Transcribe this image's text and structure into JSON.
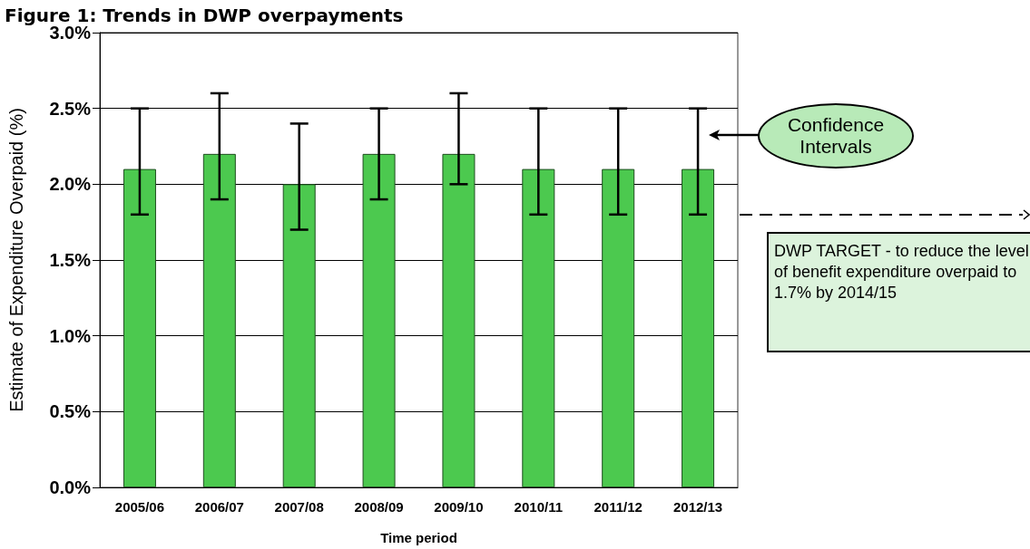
{
  "chart_data": {
    "type": "bar",
    "title": "Figure 1: Trends in DWP overpayments",
    "xlabel": "Time period",
    "ylabel": "Estimate of Expenditure Overpaid (%)",
    "categories": [
      "2005/06",
      "2006/07",
      "2007/08",
      "2008/09",
      "2009/10",
      "2010/11",
      "2011/12",
      "2012/13"
    ],
    "values": [
      2.1,
      2.2,
      2.0,
      2.2,
      2.2,
      2.1,
      2.1,
      2.1
    ],
    "errors": [
      [
        1.8,
        2.5
      ],
      [
        1.9,
        2.6
      ],
      [
        1.7,
        2.4
      ],
      [
        1.9,
        2.5
      ],
      [
        2.0,
        2.6
      ],
      [
        1.8,
        2.5
      ],
      [
        1.8,
        2.5
      ],
      [
        1.8,
        2.5
      ]
    ],
    "color": "#4cc94f",
    "ylim": [
      0,
      3
    ],
    "yticks": [
      {
        "value": 0,
        "label": "0.0%"
      },
      {
        "value": 0.5,
        "label": "0.5%"
      },
      {
        "value": 1,
        "label": "1.0%"
      },
      {
        "value": 1.5,
        "label": "1.5%"
      },
      {
        "value": 2,
        "label": "2.0%"
      },
      {
        "value": 2.5,
        "label": "2.5%"
      },
      {
        "value": 3,
        "label": "3.0%"
      }
    ],
    "grid": "y",
    "annotations": [
      "Confidence Intervals",
      "DWP TARGET - to reduce the level of benefit expenditure overpaid to 1.7% by 2014/15"
    ]
  }
}
